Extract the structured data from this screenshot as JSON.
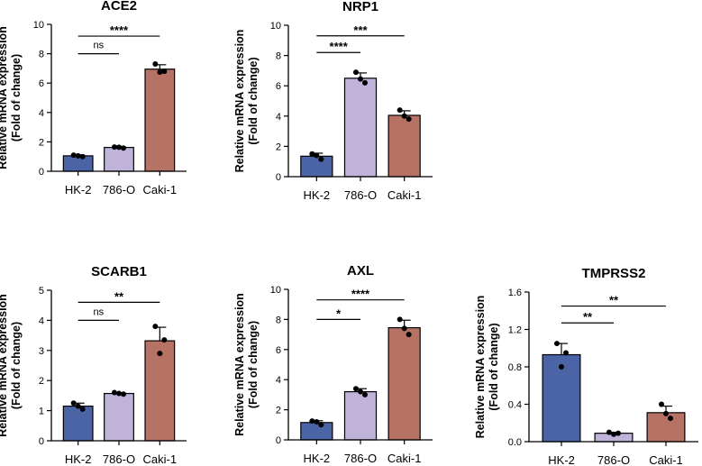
{
  "colors": {
    "hk2": "#4b64a6",
    "o786": "#bfb3da",
    "caki": "#b77266",
    "axis": "#000000"
  },
  "chart_data": [
    {
      "type": "bar",
      "title": "ACE2",
      "ylabel": [
        "Relative mRNA expression",
        "(Fold of change)"
      ],
      "categories": [
        "HK-2",
        "786-O",
        "Caki-1"
      ],
      "values": [
        1.05,
        1.62,
        6.95
      ],
      "errors": [
        0.07,
        0.06,
        0.3
      ],
      "points": [
        [
          1.1,
          1.0,
          1.05
        ],
        [
          1.65,
          1.58,
          1.63
        ],
        [
          7.3,
          6.8,
          6.75
        ]
      ],
      "ylim": [
        0,
        10
      ],
      "yticks": [
        0,
        2,
        4,
        6,
        8,
        10
      ],
      "comparisons": [
        {
          "from": 0,
          "to": 2,
          "label": "****",
          "y": 9.2
        },
        {
          "from": 0,
          "to": 1,
          "label": "ns",
          "y": 8.0
        }
      ]
    },
    {
      "type": "bar",
      "title": "NRP1",
      "ylabel": [
        "Relative mRNA expression",
        "(Fold of change)"
      ],
      "categories": [
        "HK-2",
        "786-O",
        "Caki-1"
      ],
      "values": [
        1.35,
        6.5,
        4.05
      ],
      "errors": [
        0.2,
        0.35,
        0.3
      ],
      "points": [
        [
          1.5,
          1.15,
          1.4
        ],
        [
          6.9,
          6.2,
          6.45
        ],
        [
          4.4,
          3.8,
          4.0
        ]
      ],
      "ylim": [
        0,
        10
      ],
      "yticks": [
        0,
        2,
        4,
        6,
        8,
        10
      ],
      "comparisons": [
        {
          "from": 0,
          "to": 2,
          "label": "***",
          "y": 9.3
        },
        {
          "from": 0,
          "to": 1,
          "label": "****",
          "y": 8.2
        }
      ]
    },
    {
      "type": "bar",
      "title": "SCARB1",
      "ylabel": [
        "Relative mRNA expression",
        "(Fold of change)"
      ],
      "categories": [
        "HK-2",
        "786-O",
        "Caki-1"
      ],
      "values": [
        1.15,
        1.57,
        3.32
      ],
      "errors": [
        0.1,
        0.03,
        0.45
      ],
      "points": [
        [
          1.25,
          1.05,
          1.15
        ],
        [
          1.6,
          1.55,
          1.57
        ],
        [
          3.8,
          3.35,
          2.9
        ]
      ],
      "ylim": [
        0,
        5
      ],
      "yticks": [
        0,
        1,
        2,
        3,
        4,
        5
      ],
      "comparisons": [
        {
          "from": 0,
          "to": 2,
          "label": "**",
          "y": 4.6
        },
        {
          "from": 0,
          "to": 1,
          "label": "ns",
          "y": 4.0
        }
      ]
    },
    {
      "type": "bar",
      "title": "AXL",
      "ylabel": [
        "Relative mRNA expression",
        "(Fold of change)"
      ],
      "categories": [
        "HK-2",
        "786-O",
        "Caki-1"
      ],
      "values": [
        1.15,
        3.2,
        7.45
      ],
      "errors": [
        0.12,
        0.2,
        0.5
      ],
      "points": [
        [
          1.25,
          1.0,
          1.2
        ],
        [
          3.4,
          3.0,
          3.2
        ],
        [
          8.0,
          7.0,
          7.4
        ]
      ],
      "ylim": [
        0,
        10
      ],
      "yticks": [
        0,
        2,
        4,
        6,
        8,
        10
      ],
      "comparisons": [
        {
          "from": 0,
          "to": 2,
          "label": "****",
          "y": 9.3
        },
        {
          "from": 0,
          "to": 1,
          "label": "*",
          "y": 8.0
        }
      ]
    },
    {
      "type": "bar",
      "title": "TMPRSS2",
      "ylabel": [
        "Relative mRNA expression",
        "(Fold of change)"
      ],
      "categories": [
        "HK-2",
        "786-O",
        "Caki-1"
      ],
      "values": [
        0.93,
        0.09,
        0.31
      ],
      "errors": [
        0.12,
        0.01,
        0.07
      ],
      "points": [
        [
          1.05,
          0.95,
          0.8
        ],
        [
          0.1,
          0.09,
          0.08
        ],
        [
          0.4,
          0.25,
          0.3
        ]
      ],
      "ylim": [
        0,
        1.6
      ],
      "yticks": [
        "0.0",
        "0.4",
        "0.8",
        "1.2",
        "1.6"
      ],
      "comparisons": [
        {
          "from": 0,
          "to": 2,
          "label": "**",
          "y": 1.45
        },
        {
          "from": 0,
          "to": 1,
          "label": "**",
          "y": 1.27
        }
      ]
    }
  ]
}
